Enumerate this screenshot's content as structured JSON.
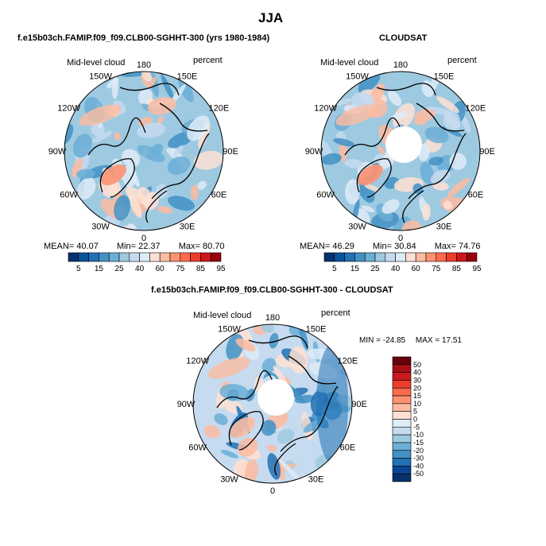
{
  "season": "JJA",
  "panels": [
    {
      "id": "model",
      "title": "f.e15b03ch.FAMIP.f09_f09.CLB00-SGHHT-300 (yrs 1980-1984)",
      "variable": "Mid-level cloud",
      "units": "percent",
      "lon_labels": [
        "180",
        "150E",
        "120E",
        "90E",
        "60E",
        "30E",
        "0",
        "30W",
        "60W",
        "90W",
        "120W",
        "150W"
      ],
      "stats": {
        "mean_label": "MEAN=",
        "mean": "40.07",
        "min_label": "Min=",
        "min": "22.37",
        "max_label": "Max=",
        "max": "80.70"
      },
      "colorbar": {
        "ticks": [
          "5",
          "15",
          "25",
          "40",
          "60",
          "75",
          "85",
          "95"
        ]
      }
    },
    {
      "id": "obs",
      "title": "CLOUDSAT",
      "variable": "Mid-level cloud",
      "units": "percent",
      "lon_labels": [
        "180",
        "150E",
        "120E",
        "90E",
        "60E",
        "30E",
        "0",
        "30W",
        "60W",
        "90W",
        "120W",
        "150W"
      ],
      "stats": {
        "mean_label": "MEAN=",
        "mean": "46.29",
        "min_label": "Min=",
        "min": "30.84",
        "max_label": "Max=",
        "max": "74.76"
      },
      "colorbar": {
        "ticks": [
          "5",
          "15",
          "25",
          "40",
          "60",
          "75",
          "85",
          "95"
        ]
      }
    },
    {
      "id": "diff",
      "title": "f.e15b03ch.FAMIP.f09_f09.CLB00-SGHHT-300 - CLOUDSAT",
      "variable": "Mid-level cloud",
      "units": "percent",
      "lon_labels": [
        "180",
        "150E",
        "120E",
        "90E",
        "60E",
        "30E",
        "0",
        "30W",
        "60W",
        "90W",
        "120W",
        "150W"
      ],
      "stats": {
        "min_label": "MIN =",
        "min": "-24.85",
        "max_label": "MAX =",
        "max": "17.51"
      },
      "colorbar": {
        "ticks": [
          "50",
          "40",
          "30",
          "20",
          "15",
          "10",
          "5",
          "0",
          "-5",
          "-10",
          "-15",
          "-20",
          "-30",
          "-40",
          "-50"
        ]
      }
    }
  ],
  "colors": {
    "seq": [
      "#08306b",
      "#08519c",
      "#2171b5",
      "#4292c6",
      "#6baed6",
      "#9ecae1",
      "#c6dbef",
      "#deebf7",
      "#fee0d2",
      "#fcbba1",
      "#fc9272",
      "#fb6a4a",
      "#ef3b2c",
      "#cb181d",
      "#99000d"
    ],
    "div": [
      "#67000d",
      "#a50f15",
      "#cb181d",
      "#ef3b2c",
      "#fb6a4a",
      "#fc9272",
      "#fcbba1",
      "#fee0d2",
      "#deebf7",
      "#c6dbef",
      "#9ecae1",
      "#6baed6",
      "#4292c6",
      "#2171b5",
      "#084594",
      "#08306b"
    ]
  }
}
